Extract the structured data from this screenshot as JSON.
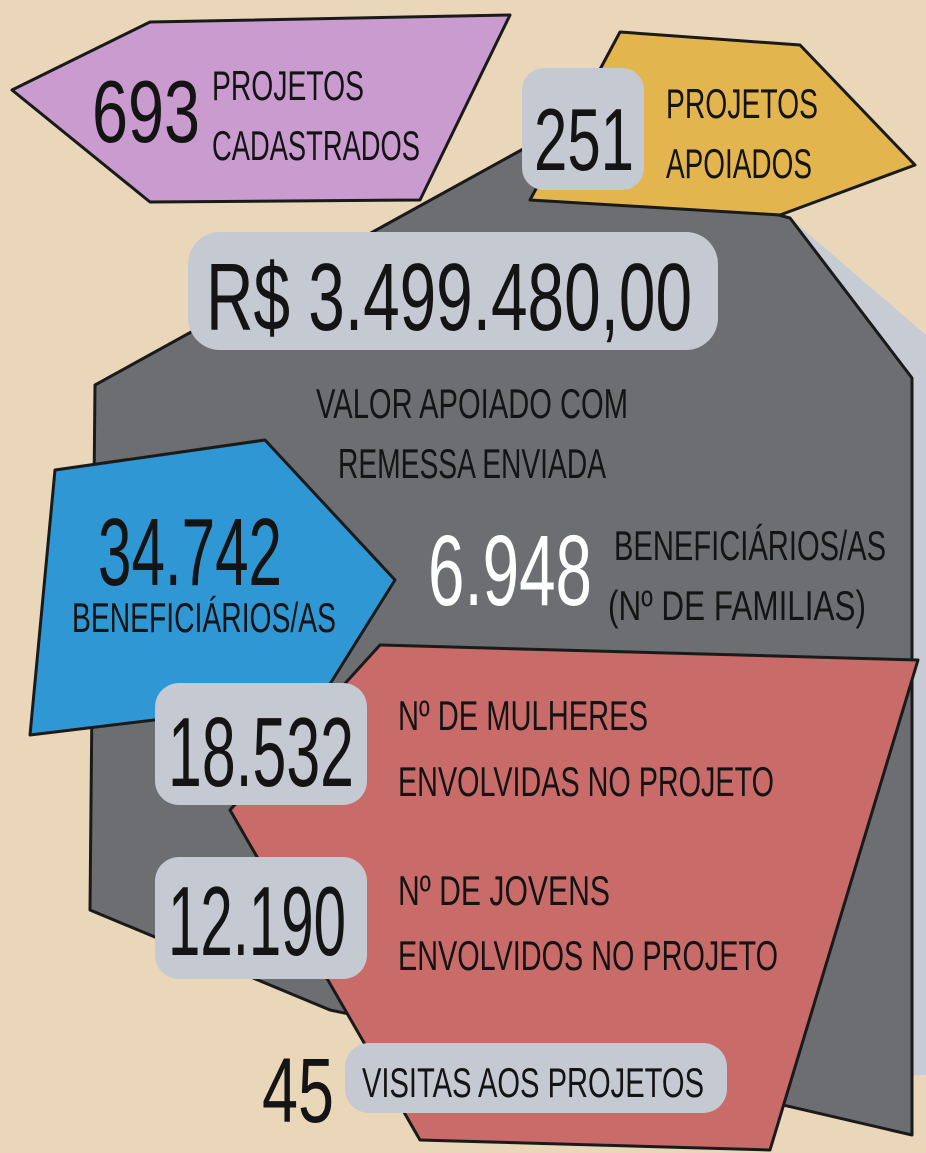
{
  "cadastrados": {
    "number": "693",
    "label": [
      "PROJETOS",
      "CADASTRADOS"
    ]
  },
  "apoiados": {
    "number": "251",
    "label": [
      "PROJETOS",
      "APOIADOS"
    ]
  },
  "valor": {
    "amount": "R$ 3.499.480,00",
    "label": [
      "VALOR APOIADO COM",
      "REMESSA ENVIADA"
    ]
  },
  "beneficiarios": {
    "number": "34.742",
    "label": "BENEFICIÁRIOS/AS"
  },
  "familias": {
    "number": "6.948",
    "label": [
      "BENEFICIÁRIOS/AS",
      "(Nº DE FAMILIAS)"
    ]
  },
  "mulheres": {
    "number": "18.532",
    "label": [
      "Nº DE MULHERES",
      "ENVOLVIDAS NO PROJETO"
    ]
  },
  "jovens": {
    "number": "12.190",
    "label": [
      "Nº DE JOVENS",
      "ENVOLVIDOS NO PROJETO"
    ]
  },
  "visitas": {
    "number": "45",
    "label": "VISITAS AOS PROJETOS"
  }
}
